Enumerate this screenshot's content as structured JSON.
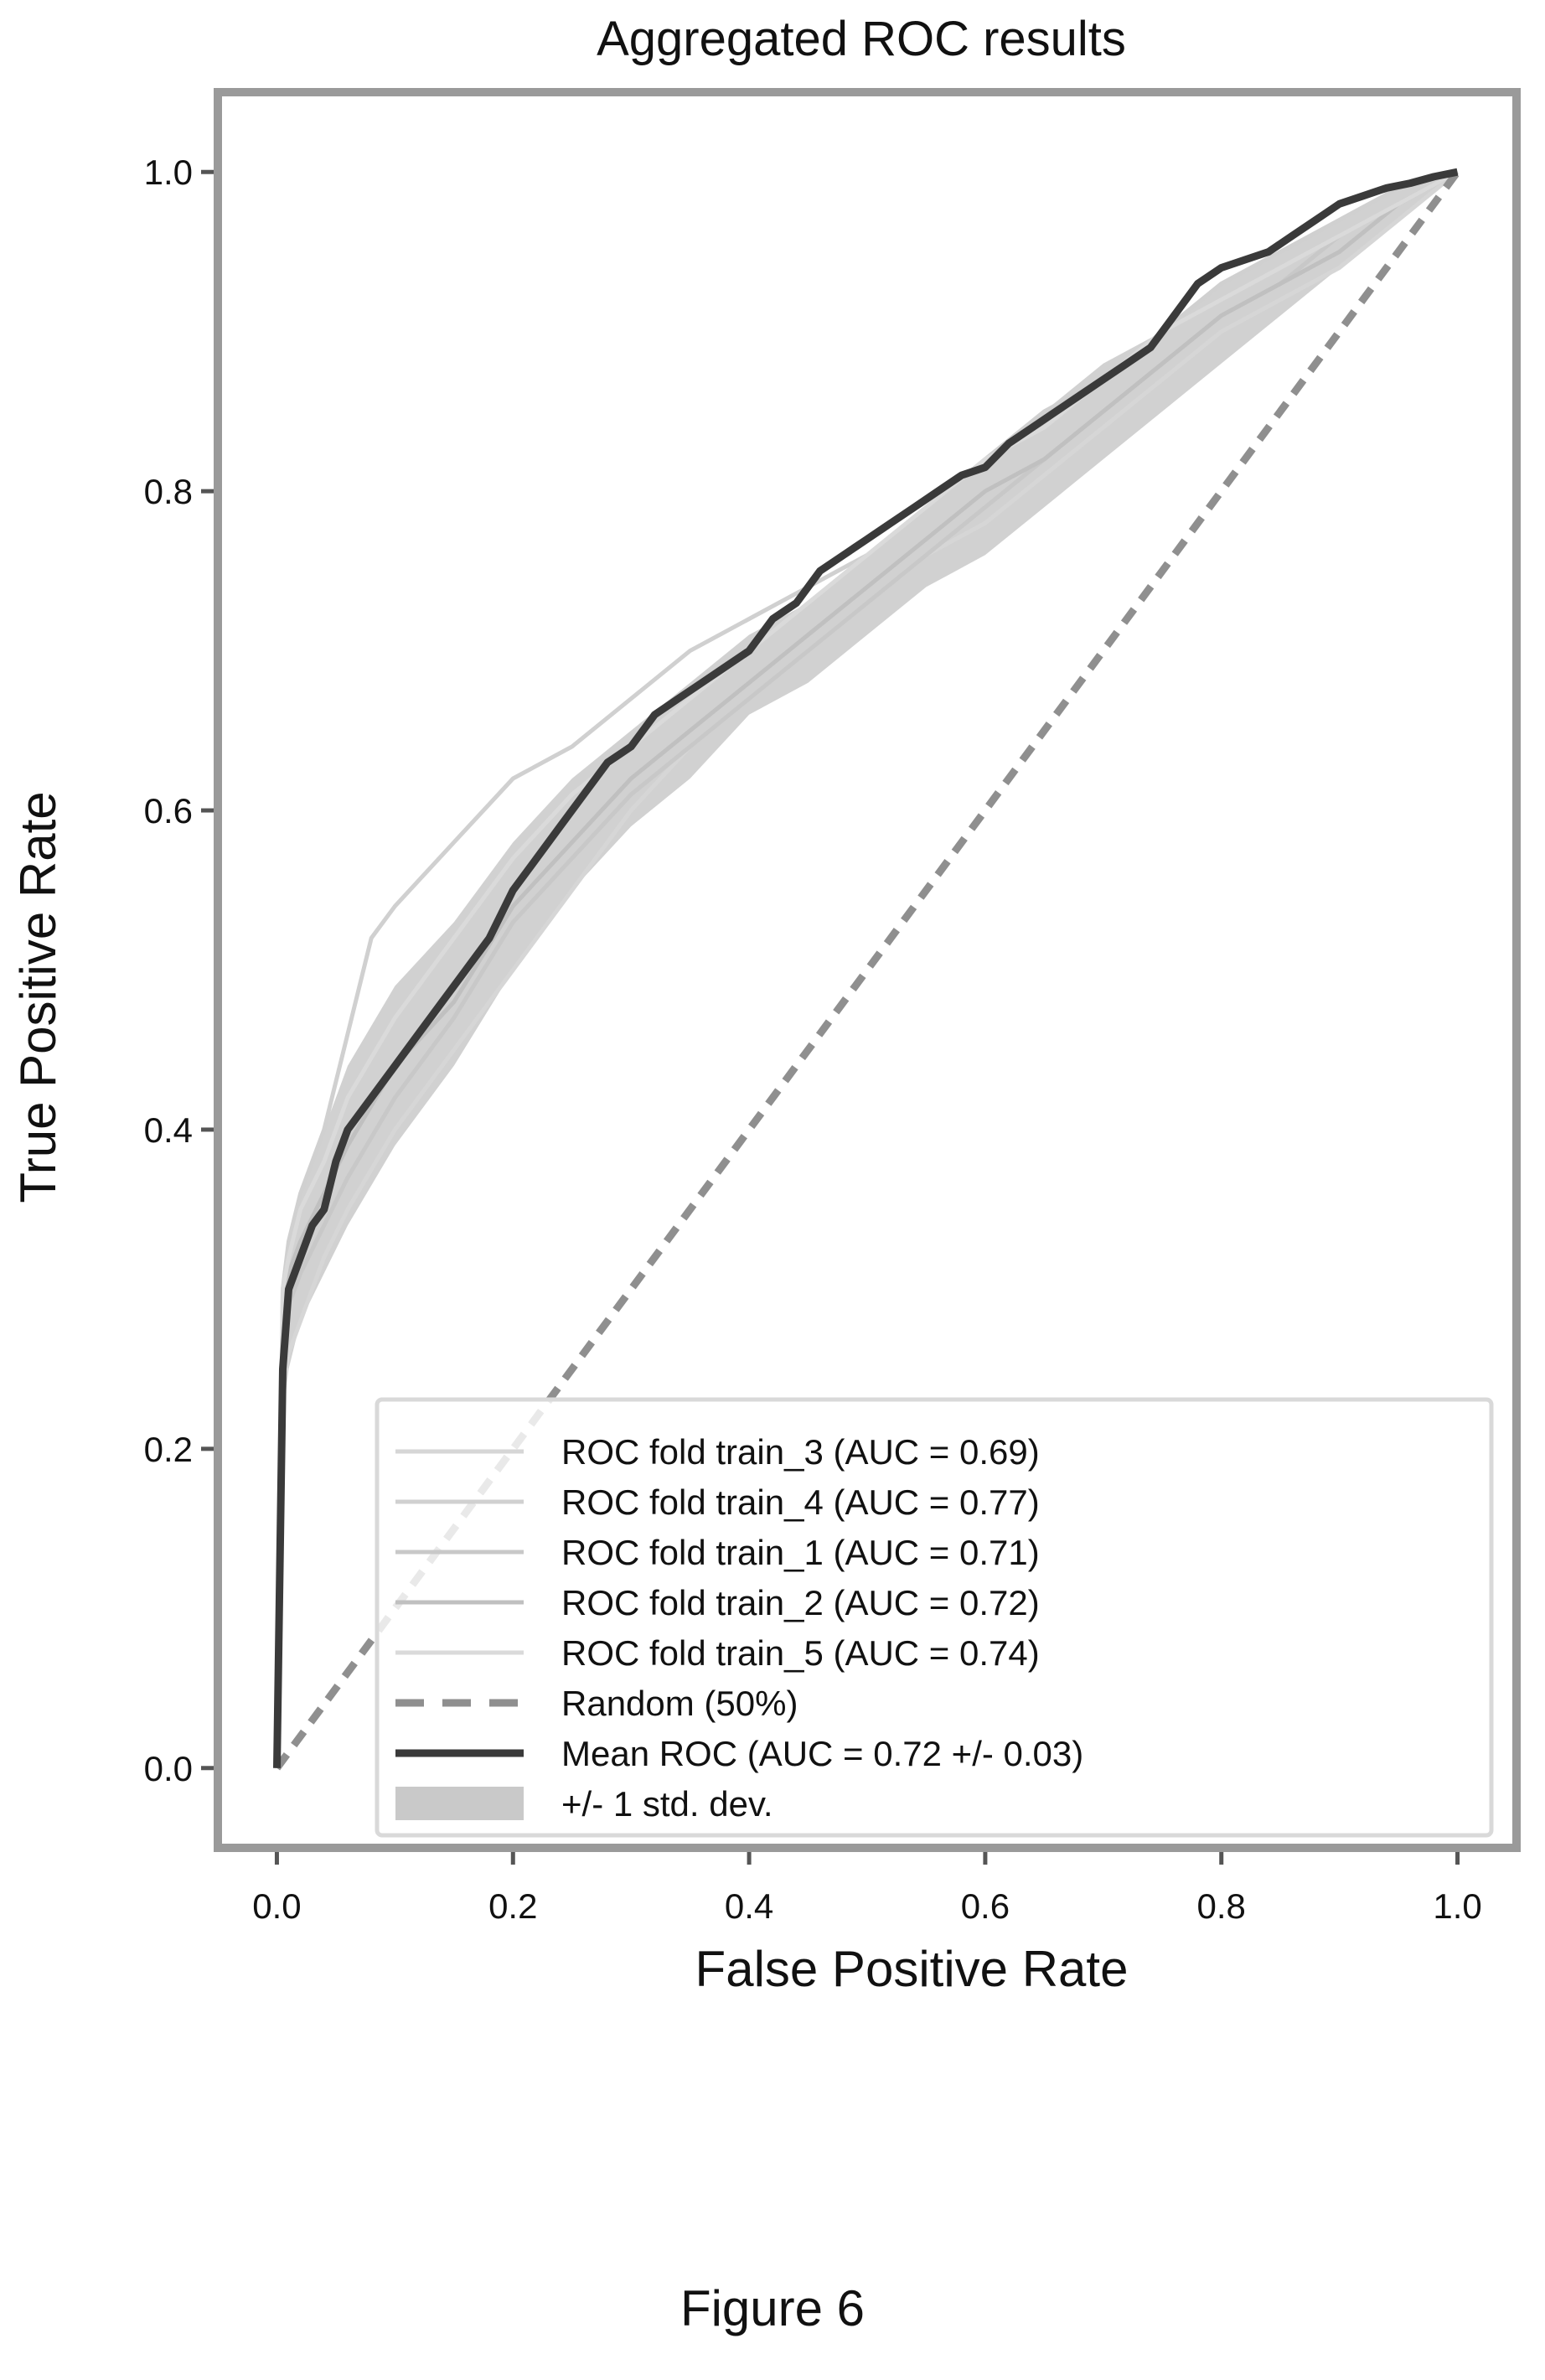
{
  "figure_caption": "Figure 6",
  "colors": {
    "mean": "#3a3a3a",
    "random": "#8f8f8f",
    "std_band": "#c9c9c9",
    "folds": [
      "#d6d6d6",
      "#d0d0d0",
      "#c8c8c8",
      "#c0c0c0",
      "#dadada"
    ],
    "frame": "#9a9a9a"
  },
  "chart_data": {
    "type": "line",
    "title": "Aggregated ROC results",
    "xlabel": "False Positive Rate",
    "ylabel": "True Positive Rate",
    "xlim": [
      -0.05,
      1.05
    ],
    "ylim": [
      -0.05,
      1.05
    ],
    "xticks": [
      "0.0",
      "0.2",
      "0.4",
      "0.6",
      "0.8",
      "1.0"
    ],
    "yticks": [
      "0.0",
      "0.2",
      "0.4",
      "0.6",
      "0.8",
      "1.0"
    ],
    "grid": false,
    "legend_position": "lower-right",
    "series": [
      {
        "name": "ROC fold train_3 (AUC = 0.69)",
        "style": "solid",
        "x": [
          0,
          0.005,
          0.01,
          0.02,
          0.04,
          0.06,
          0.1,
          0.15,
          0.2,
          0.25,
          0.3,
          0.35,
          0.4,
          0.45,
          0.5,
          0.55,
          0.6,
          0.65,
          0.7,
          0.75,
          0.8,
          0.85,
          0.9,
          0.95,
          1.0
        ],
        "y": [
          0,
          0.24,
          0.26,
          0.28,
          0.32,
          0.35,
          0.4,
          0.45,
          0.5,
          0.55,
          0.6,
          0.64,
          0.67,
          0.7,
          0.73,
          0.76,
          0.78,
          0.81,
          0.84,
          0.87,
          0.9,
          0.92,
          0.94,
          0.97,
          1.0
        ]
      },
      {
        "name": "ROC fold train_4 (AUC = 0.77)",
        "style": "solid",
        "x": [
          0,
          0.005,
          0.01,
          0.02,
          0.04,
          0.06,
          0.08,
          0.1,
          0.15,
          0.2,
          0.25,
          0.3,
          0.35,
          0.4,
          0.45,
          0.5,
          0.55,
          0.6,
          0.65,
          0.7,
          0.75,
          0.8,
          0.85,
          0.9,
          0.95,
          1.0
        ],
        "y": [
          0,
          0.3,
          0.33,
          0.36,
          0.4,
          0.46,
          0.52,
          0.54,
          0.58,
          0.62,
          0.64,
          0.67,
          0.7,
          0.72,
          0.74,
          0.76,
          0.79,
          0.82,
          0.85,
          0.87,
          0.9,
          0.93,
          0.95,
          0.97,
          0.99,
          1.0
        ]
      },
      {
        "name": "ROC fold train_1 (AUC = 0.71)",
        "style": "solid",
        "x": [
          0,
          0.005,
          0.01,
          0.02,
          0.04,
          0.06,
          0.1,
          0.15,
          0.2,
          0.25,
          0.3,
          0.35,
          0.4,
          0.45,
          0.5,
          0.55,
          0.6,
          0.65,
          0.7,
          0.75,
          0.8,
          0.85,
          0.9,
          0.95,
          1.0
        ],
        "y": [
          0,
          0.27,
          0.29,
          0.31,
          0.34,
          0.37,
          0.42,
          0.47,
          0.53,
          0.57,
          0.61,
          0.64,
          0.67,
          0.7,
          0.73,
          0.76,
          0.79,
          0.82,
          0.85,
          0.88,
          0.91,
          0.93,
          0.96,
          0.98,
          1.0
        ]
      },
      {
        "name": "ROC fold train_2 (AUC = 0.72)",
        "style": "solid",
        "x": [
          0,
          0.005,
          0.01,
          0.02,
          0.04,
          0.06,
          0.1,
          0.15,
          0.2,
          0.25,
          0.3,
          0.35,
          0.4,
          0.45,
          0.5,
          0.55,
          0.6,
          0.65,
          0.7,
          0.75,
          0.8,
          0.85,
          0.9,
          0.95,
          1.0
        ],
        "y": [
          0,
          0.29,
          0.31,
          0.33,
          0.36,
          0.39,
          0.44,
          0.48,
          0.54,
          0.58,
          0.62,
          0.65,
          0.68,
          0.71,
          0.74,
          0.77,
          0.8,
          0.82,
          0.85,
          0.88,
          0.91,
          0.93,
          0.95,
          0.98,
          1.0
        ]
      },
      {
        "name": "ROC fold train_5 (AUC = 0.74)",
        "style": "solid",
        "x": [
          0,
          0.005,
          0.01,
          0.02,
          0.04,
          0.06,
          0.1,
          0.15,
          0.2,
          0.25,
          0.3,
          0.35,
          0.4,
          0.45,
          0.5,
          0.55,
          0.6,
          0.65,
          0.7,
          0.75,
          0.8,
          0.85,
          0.9,
          0.95,
          1.0
        ],
        "y": [
          0,
          0.3,
          0.32,
          0.35,
          0.38,
          0.42,
          0.47,
          0.52,
          0.57,
          0.61,
          0.64,
          0.67,
          0.7,
          0.73,
          0.76,
          0.79,
          0.82,
          0.84,
          0.87,
          0.9,
          0.92,
          0.94,
          0.96,
          0.98,
          1.0
        ]
      },
      {
        "name": "Random (50%)",
        "style": "dashed",
        "x": [
          0,
          1
        ],
        "y": [
          0,
          1
        ]
      },
      {
        "name": "Mean ROC (AUC = 0.72 +/- 0.03)",
        "style": "solid",
        "x": [
          0,
          0.005,
          0.01,
          0.02,
          0.03,
          0.04,
          0.05,
          0.06,
          0.08,
          0.1,
          0.12,
          0.14,
          0.16,
          0.18,
          0.2,
          0.22,
          0.24,
          0.26,
          0.28,
          0.3,
          0.32,
          0.34,
          0.36,
          0.38,
          0.4,
          0.42,
          0.44,
          0.46,
          0.48,
          0.5,
          0.52,
          0.54,
          0.56,
          0.58,
          0.6,
          0.62,
          0.64,
          0.66,
          0.68,
          0.7,
          0.72,
          0.74,
          0.76,
          0.78,
          0.8,
          0.82,
          0.84,
          0.86,
          0.88,
          0.9,
          0.92,
          0.94,
          0.96,
          0.98,
          1.0
        ],
        "y": [
          0,
          0.25,
          0.3,
          0.32,
          0.34,
          0.35,
          0.38,
          0.4,
          0.42,
          0.44,
          0.46,
          0.48,
          0.5,
          0.52,
          0.55,
          0.57,
          0.59,
          0.61,
          0.63,
          0.64,
          0.66,
          0.67,
          0.68,
          0.69,
          0.7,
          0.72,
          0.73,
          0.75,
          0.76,
          0.77,
          0.78,
          0.79,
          0.8,
          0.81,
          0.815,
          0.83,
          0.84,
          0.85,
          0.86,
          0.87,
          0.88,
          0.89,
          0.91,
          0.93,
          0.94,
          0.945,
          0.95,
          0.96,
          0.97,
          0.98,
          0.985,
          0.99,
          0.993,
          0.997,
          1.0
        ]
      }
    ],
    "std_band": {
      "name": "+/- 1 std. dev.",
      "x": [
        0,
        0.005,
        0.01,
        0.02,
        0.04,
        0.06,
        0.1,
        0.15,
        0.2,
        0.25,
        0.3,
        0.35,
        0.4,
        0.45,
        0.5,
        0.55,
        0.6,
        0.65,
        0.7,
        0.75,
        0.8,
        0.85,
        0.9,
        0.95,
        1.0
      ],
      "upper": [
        0,
        0.3,
        0.33,
        0.36,
        0.4,
        0.44,
        0.49,
        0.53,
        0.58,
        0.62,
        0.65,
        0.68,
        0.71,
        0.73,
        0.76,
        0.79,
        0.82,
        0.85,
        0.88,
        0.9,
        0.93,
        0.95,
        0.97,
        0.99,
        1.0
      ],
      "lower": [
        0,
        0.22,
        0.25,
        0.28,
        0.31,
        0.34,
        0.39,
        0.44,
        0.5,
        0.55,
        0.59,
        0.62,
        0.66,
        0.68,
        0.71,
        0.74,
        0.76,
        0.79,
        0.82,
        0.85,
        0.88,
        0.91,
        0.94,
        0.97,
        1.0
      ]
    }
  }
}
